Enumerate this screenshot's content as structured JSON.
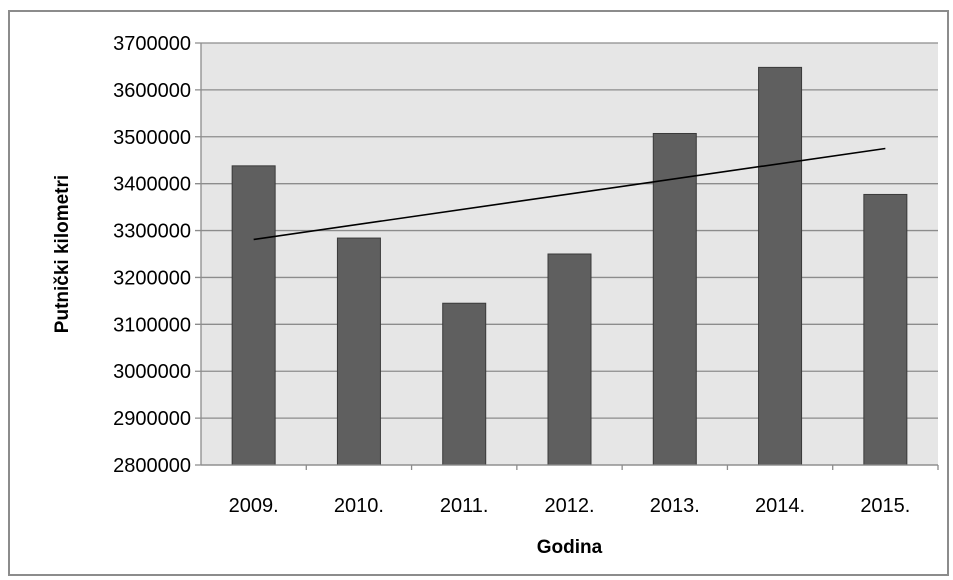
{
  "chart_data": {
    "type": "bar",
    "categories": [
      "2009.",
      "2010.",
      "2011.",
      "2012.",
      "2013.",
      "2014.",
      "2015."
    ],
    "values": [
      3438000,
      3284000,
      3145000,
      3250000,
      3507000,
      3648000,
      3377000
    ],
    "trendline": {
      "type": "linear",
      "start": 3281000,
      "end": 3475000
    },
    "title": "",
    "xlabel": "Godina",
    "ylabel": "Putnički kilometri",
    "ylim": [
      2800000,
      3700000
    ],
    "yticks": [
      "2800000",
      "2900000",
      "3000000",
      "3100000",
      "3200000",
      "3300000",
      "3400000",
      "3500000",
      "3600000",
      "3700000"
    ],
    "grid": true,
    "legend": "none",
    "colors": {
      "bar": "#5f5f5f",
      "bar_edge": "#3a3a3a",
      "plot_bg": "#e6e6e6",
      "grid": "#8c8c8c",
      "trend": "#000000"
    }
  }
}
